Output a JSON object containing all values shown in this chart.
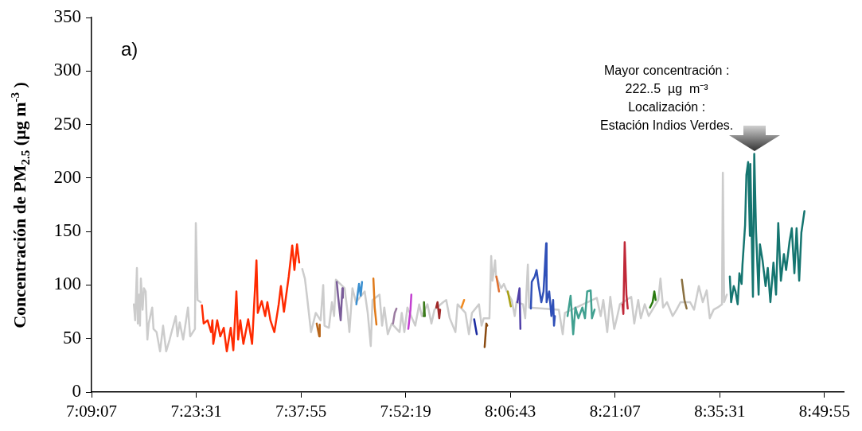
{
  "chart_data": {
    "type": "line",
    "ylabel": "Concentración de PM$_{2.5}$ (µg m$^{-3}$ )",
    "annotations": [
      "a)",
      {
        "text": "Mayor concentración :\n222..5  µg  m⁻³\nLocalización :\nEstación Indios Verdes.",
        "x": 8.671,
        "y": 222.5
      }
    ],
    "xlim": [
      7.151944,
      8.876
    ],
    "xticks": [
      {
        "value": 7.151944,
        "label": "7:09:07"
      },
      {
        "value": 7.391944,
        "label": "7:23:31"
      },
      {
        "value": 7.631944,
        "label": "7:37:55"
      },
      {
        "value": 7.871944,
        "label": "7:52:19"
      },
      {
        "value": 8.111944,
        "label": "8:06:43"
      },
      {
        "value": 8.351944,
        "label": "8:21:07"
      },
      {
        "value": 8.591944,
        "label": "8:35:31"
      },
      {
        "value": 8.831944,
        "label": "8:49:55"
      }
    ],
    "ylim": [
      0,
      350
    ],
    "yticks": [
      0,
      50,
      100,
      150,
      200,
      250,
      300,
      350
    ],
    "series": [
      {
        "color": "#cccccc",
        "x": [
          7.249,
          7.252,
          7.256,
          7.258,
          7.261,
          7.263,
          7.265,
          7.269,
          7.272,
          7.276,
          7.28,
          7.283,
          7.291,
          7.294,
          7.301,
          7.309,
          7.316,
          7.323,
          7.331,
          7.345,
          7.349,
          7.354,
          7.362,
          7.373,
          7.378,
          7.389,
          7.391,
          7.395,
          7.402,
          7.52,
          7.635,
          7.641,
          7.646,
          7.655,
          7.666,
          7.677,
          7.683,
          7.686,
          7.696,
          7.703,
          7.708,
          7.712,
          7.732,
          7.739,
          7.743,
          7.75,
          7.758,
          7.778,
          7.785,
          7.792,
          7.796,
          7.812,
          7.818,
          7.823,
          7.831,
          7.84,
          7.858,
          7.863,
          7.869,
          7.876,
          7.894,
          7.903,
          7.909,
          7.922,
          7.931,
          7.938,
          7.958,
          7.965,
          7.973,
          7.986,
          7.991,
          8.009,
          8.017,
          8.024,
          8.04,
          8.046,
          8.051,
          8.064,
          8.068,
          8.071,
          8.077,
          8.079,
          8.091,
          8.097,
          8.104,
          8.115,
          8.122,
          8.126,
          8.141,
          8.146,
          8.152,
          8.155,
          8.223,
          8.232,
          8.237,
          8.31,
          8.319,
          8.325,
          8.334,
          8.341,
          8.35,
          8.356,
          8.363,
          8.389,
          8.396,
          8.405,
          8.411,
          8.42,
          8.429,
          8.451,
          8.456,
          8.462,
          8.471,
          8.484,
          8.493,
          8.502,
          8.524,
          8.533,
          8.544,
          8.553,
          8.562,
          8.569,
          8.578,
          8.587,
          8.597,
          8.599,
          8.602,
          8.608
        ],
        "values": [
          82,
          67,
          116,
          64,
          91,
          62,
          106,
          77,
          97,
          94,
          49,
          64,
          79,
          59,
          56,
          38,
          62,
          38,
          49,
          71,
          52,
          65,
          49,
          79,
          52,
          59,
          158,
          86,
          84,
          null,
          115,
          106,
          89,
          56,
          74,
          67,
          100,
          62,
          60,
          84,
          71,
          105,
          97,
          74,
          56,
          97,
          84,
          94,
          74,
          43,
          86,
          91,
          62,
          79,
          54,
          64,
          56,
          74,
          56,
          79,
          62,
          82,
          71,
          82,
          64,
          77,
          84,
          86,
          69,
          56,
          82,
          74,
          54,
          74,
          82,
          62,
          69,
          69,
          127,
          104,
          123,
          108,
          97,
          101,
          94,
          86,
          71,
          84,
          82,
          69,
          119,
          79,
          77,
          54,
          74,
          88,
          71,
          86,
          56,
          89,
          59,
          69,
          82,
          89,
          64,
          86,
          69,
          82,
          71,
          86,
          106,
          79,
          84,
          71,
          77,
          84,
          84,
          77,
          99,
          84,
          95,
          69,
          77,
          79,
          82,
          205,
          84,
          91
        ]
      },
      {
        "color": "#ff2a00",
        "x": [
          7.405,
          7.409,
          7.418,
          7.426,
          7.429,
          7.431,
          7.44,
          7.447,
          7.455,
          7.462,
          7.471,
          7.477,
          7.484,
          7.488,
          7.493,
          7.5,
          7.511,
          7.52,
          7.53,
          7.533,
          7.542,
          7.55,
          7.555,
          7.562,
          7.571,
          7.581,
          7.586,
          7.593,
          7.604,
          7.612,
          7.617,
          7.623,
          7.628
        ],
        "values": [
          81,
          64,
          67,
          56,
          67,
          45,
          67,
          52,
          60,
          38,
          60,
          39,
          94,
          49,
          67,
          45,
          68,
          45,
          123,
          74,
          85,
          71,
          84,
          67,
          56,
          82,
          99,
          75,
          108,
          137,
          114,
          138,
          121
        ]
      },
      {
        "color": "#b8651a",
        "x": [
          7.668,
          7.674,
          7.675
        ],
        "values": [
          64,
          52,
          63
        ]
      },
      {
        "color": "#7a5c99",
        "x": [
          7.714,
          7.717,
          7.723,
          7.727,
          7.728
        ],
        "values": [
          103,
          90,
          67,
          97,
          88
        ]
      },
      {
        "color": "#3a8fd0",
        "x": [
          7.759,
          7.765,
          7.769,
          7.772
        ],
        "values": [
          82,
          101,
          90,
          103
        ]
      },
      {
        "color": "#e07a1a",
        "x": [
          7.798,
          7.801,
          7.805
        ],
        "values": [
          106,
          79,
          63
        ]
      },
      {
        "color": "#9a7aa0",
        "x": [
          7.843,
          7.847,
          7.851
        ],
        "values": [
          64,
          74,
          78
        ]
      },
      {
        "color": "#c23fd0",
        "x": [
          7.878,
          7.883,
          7.885
        ],
        "values": [
          59,
          77,
          91
        ]
      },
      {
        "color": "#3a7a1a",
        "x": [
          7.913,
          7.914,
          7.916
        ],
        "values": [
          71,
          84,
          71
        ]
      },
      {
        "color": "#a02828",
        "x": [
          7.942,
          7.945,
          7.949,
          7.951
        ],
        "values": [
          79,
          84,
          69,
          77
        ]
      },
      {
        "color": "#f08a20",
        "x": [
          8.0,
          8.006
        ],
        "values": [
          79,
          86
        ]
      },
      {
        "color": "#1a2aa0",
        "x": [
          8.029,
          8.035
        ],
        "values": [
          68,
          54
        ]
      },
      {
        "color": "#8a4a10",
        "x": [
          8.053,
          8.057,
          8.059
        ],
        "values": [
          42,
          64,
          62
        ]
      },
      {
        "color": "#e07030",
        "x": [
          8.08,
          8.086
        ],
        "values": [
          108,
          94
        ]
      },
      {
        "color": "#a8a010",
        "x": [
          8.106,
          8.113
        ],
        "values": [
          94,
          80
        ]
      },
      {
        "color": "#5040a8",
        "x": [
          8.128,
          8.133,
          8.135
        ],
        "values": [
          84,
          97,
          59
        ]
      },
      {
        "color": "#3050b8",
        "x": [
          8.159,
          8.161,
          8.168,
          8.172,
          8.177,
          8.183,
          8.188,
          8.194,
          8.195,
          8.201,
          8.206,
          8.21,
          8.212,
          8.214
        ],
        "values": [
          78,
          103,
          108,
          114,
          99,
          84,
          94,
          139,
          84,
          94,
          71,
          86,
          62,
          71
        ]
      },
      {
        "color": "#40a090",
        "x": [
          8.243,
          8.25,
          8.256,
          8.261,
          8.268,
          8.277,
          8.283,
          8.288,
          8.296,
          8.299,
          8.305
        ],
        "values": [
          71,
          90,
          54,
          79,
          69,
          79,
          69,
          94,
          95,
          69,
          77
        ]
      },
      {
        "color": "#c02838",
        "x": [
          8.369,
          8.371,
          8.374,
          8.378,
          8.381
        ],
        "values": [
          82,
          73,
          140,
          91,
          78
        ]
      },
      {
        "color": "#2a7a10",
        "x": [
          8.432,
          8.438,
          8.442,
          8.445
        ],
        "values": [
          79,
          84,
          94,
          86
        ]
      },
      {
        "color": "#8a7040",
        "x": [
          8.505,
          8.511,
          8.516
        ],
        "values": [
          105,
          86,
          78
        ]
      },
      {
        "color": "#157570",
        "x": [
          8.615,
          8.618,
          8.624,
          8.628,
          8.633,
          8.637,
          8.642,
          8.644,
          8.65,
          8.653,
          8.657,
          8.661,
          8.662,
          8.668,
          8.671,
          8.675,
          8.681,
          8.684,
          8.69,
          8.697,
          8.702,
          8.708,
          8.715,
          8.721,
          8.726,
          8.732,
          8.739,
          8.744,
          8.752,
          8.757,
          8.763,
          8.768,
          8.774,
          8.779,
          8.786
        ],
        "values": [
          108,
          84,
          99,
          94,
          82,
          111,
          101,
          119,
          156,
          203,
          215,
          146,
          213,
          89,
          222.5,
          151,
          91,
          138,
          123,
          99,
          116,
          84,
          121,
          91,
          158,
          104,
          129,
          114,
          141,
          153,
          111,
          153,
          104,
          149,
          169
        ]
      }
    ]
  }
}
